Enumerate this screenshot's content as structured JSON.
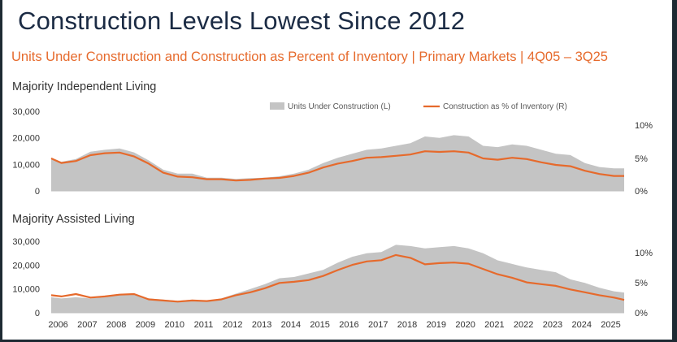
{
  "title": "Construction Levels Lowest Since 2012",
  "subtitle": "Units Under Construction and Construction as Percent of Inventory | Primary Markets | 4Q05 – 3Q25",
  "colors": {
    "area": "#c4c4c4",
    "line": "#e66a2c",
    "title": "#1b2b44",
    "subtitle": "#e66a2c"
  },
  "chart_data": [
    {
      "type": "area",
      "panel_title": "Majority Independent Living",
      "legend": [
        "Units Under Construction (L)",
        "Construction as % of Inventory (R)"
      ],
      "legend_position": "top",
      "x": [
        2005.9,
        2006.25,
        2006.75,
        2007.25,
        2007.75,
        2008.25,
        2008.75,
        2009.25,
        2009.75,
        2010.25,
        2010.75,
        2011.25,
        2011.75,
        2012.25,
        2012.75,
        2013.25,
        2013.75,
        2014.25,
        2014.75,
        2015.25,
        2015.75,
        2016.25,
        2016.75,
        2017.25,
        2017.75,
        2018.25,
        2018.75,
        2019.25,
        2019.75,
        2020.25,
        2020.75,
        2021.25,
        2021.75,
        2022.25,
        2022.75,
        2023.25,
        2023.75,
        2024.25,
        2024.75,
        2025.25,
        2025.6
      ],
      "series": [
        {
          "name": "Units Under Construction (L)",
          "axis": "left",
          "values": [
            12500,
            11000,
            12000,
            14800,
            15500,
            16000,
            14500,
            11500,
            8000,
            6500,
            6500,
            5000,
            5000,
            4500,
            4800,
            5000,
            5500,
            6500,
            8000,
            10500,
            12500,
            14000,
            15500,
            16000,
            17000,
            18000,
            20500,
            20000,
            21000,
            20500,
            17000,
            16500,
            17500,
            17000,
            15500,
            14000,
            13500,
            10500,
            9000,
            8500,
            8500
          ]
        },
        {
          "name": "Construction as % of Inventory (R)",
          "axis": "right",
          "values": [
            5.0,
            4.3,
            4.6,
            5.5,
            5.8,
            5.9,
            5.3,
            4.2,
            2.8,
            2.2,
            2.1,
            1.8,
            1.8,
            1.6,
            1.7,
            1.9,
            2.0,
            2.3,
            2.8,
            3.6,
            4.2,
            4.6,
            5.1,
            5.2,
            5.4,
            5.6,
            6.1,
            6.0,
            6.1,
            5.9,
            5.0,
            4.8,
            5.1,
            4.9,
            4.4,
            4.0,
            3.8,
            3.1,
            2.6,
            2.3,
            2.3
          ]
        }
      ],
      "yleft": {
        "lim": [
          0,
          30000
        ],
        "ticks": [
          "0",
          "10,000",
          "20,000",
          "30,000"
        ],
        "tick_values": [
          0,
          10000,
          20000,
          30000
        ]
      },
      "yright": {
        "lim": [
          0,
          12
        ],
        "ticks": [
          "0%",
          "5%",
          "10%"
        ],
        "tick_values": [
          0,
          5,
          10
        ]
      }
    },
    {
      "type": "area",
      "panel_title": "Majority Assisted Living",
      "x": [
        2005.9,
        2006.25,
        2006.75,
        2007.25,
        2007.75,
        2008.25,
        2008.75,
        2009.25,
        2009.75,
        2010.25,
        2010.75,
        2011.25,
        2011.75,
        2012.25,
        2012.75,
        2013.25,
        2013.75,
        2014.25,
        2014.75,
        2015.25,
        2015.75,
        2016.25,
        2016.75,
        2017.25,
        2017.75,
        2018.25,
        2018.75,
        2019.25,
        2019.75,
        2020.25,
        2020.75,
        2021.25,
        2021.75,
        2022.25,
        2022.75,
        2023.25,
        2023.75,
        2024.25,
        2024.75,
        2025.25,
        2025.6
      ],
      "series": [
        {
          "name": "Units Under Construction (L)",
          "axis": "left",
          "values": [
            6500,
            6000,
            6500,
            6000,
            6500,
            7500,
            8000,
            6000,
            5500,
            5000,
            5500,
            5000,
            6000,
            8000,
            10000,
            12000,
            14500,
            15000,
            16500,
            18000,
            21000,
            23500,
            25000,
            25500,
            28500,
            28000,
            27000,
            27500,
            28000,
            27000,
            25000,
            22000,
            20500,
            19000,
            18000,
            17000,
            14000,
            12500,
            10500,
            9000,
            8500
          ]
        },
        {
          "name": "Construction as % of Inventory (R)",
          "axis": "right",
          "values": [
            3.0,
            2.8,
            3.2,
            2.6,
            2.8,
            3.1,
            3.2,
            2.3,
            2.1,
            1.9,
            2.1,
            2.0,
            2.3,
            3.0,
            3.5,
            4.2,
            5.1,
            5.3,
            5.6,
            6.3,
            7.3,
            8.2,
            8.8,
            9.0,
            9.9,
            9.4,
            8.3,
            8.5,
            8.6,
            8.4,
            7.5,
            6.6,
            6.0,
            5.2,
            4.9,
            4.6,
            4.0,
            3.5,
            3.0,
            2.6,
            2.2
          ]
        }
      ],
      "yleft": {
        "lim": [
          0,
          30000
        ],
        "ticks": [
          "0",
          "10,000",
          "20,000",
          "30,000"
        ],
        "tick_values": [
          0,
          10000,
          20000,
          30000
        ]
      },
      "yright": {
        "lim": [
          0,
          12
        ],
        "ticks": [
          "0%",
          "5%",
          "10%"
        ],
        "tick_values": [
          0,
          5,
          10
        ]
      },
      "x_ticks": [
        "2006",
        "2007",
        "2008",
        "2009",
        "2010",
        "2011",
        "2012",
        "2013",
        "2014",
        "2015",
        "2016",
        "2017",
        "2018",
        "2019",
        "2020",
        "2021",
        "2022",
        "2023",
        "2024",
        "2025"
      ]
    }
  ]
}
